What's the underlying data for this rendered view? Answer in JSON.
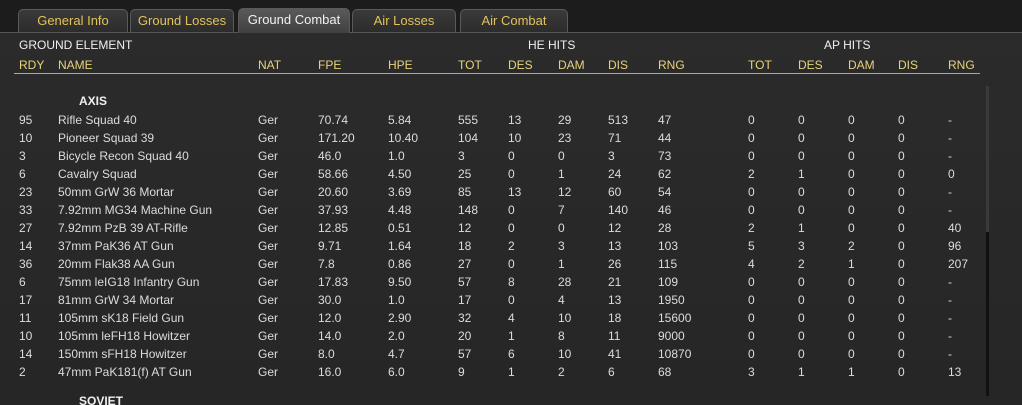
{
  "tabs": [
    "General Info",
    "Ground Losses",
    "Ground Combat",
    "Air Losses",
    "Air Combat"
  ],
  "active_tab": 2,
  "header": {
    "group": "GROUND ELEMENT",
    "he_hits": "HE HITS",
    "ap_hits": "AP HITS",
    "columns": [
      "RDY",
      "NAME",
      "NAT",
      "FPE",
      "HPE",
      "TOT",
      "DES",
      "DAM",
      "DIS",
      "RNG",
      "TOT",
      "DES",
      "DAM",
      "DIS",
      "RNG"
    ]
  },
  "sections": [
    {
      "name": "AXIS",
      "rows": [
        [
          "95",
          "Rifle Squad 40",
          "Ger",
          "70.74",
          "5.84",
          "555",
          "13",
          "29",
          "513",
          "47",
          "0",
          "0",
          "0",
          "0",
          "-"
        ],
        [
          "10",
          "Pioneer Squad 39",
          "Ger",
          "171.20",
          "10.40",
          "104",
          "10",
          "23",
          "71",
          "44",
          "0",
          "0",
          "0",
          "0",
          "-"
        ],
        [
          "3",
          "Bicycle Recon Squad 40",
          "Ger",
          "46.0",
          "1.0",
          "3",
          "0",
          "0",
          "3",
          "73",
          "0",
          "0",
          "0",
          "0",
          "-"
        ],
        [
          "6",
          "Cavalry Squad",
          "Ger",
          "58.66",
          "4.50",
          "25",
          "0",
          "1",
          "24",
          "62",
          "2",
          "1",
          "0",
          "0",
          "0"
        ],
        [
          "23",
          "50mm GrW 36 Mortar",
          "Ger",
          "20.60",
          "3.69",
          "85",
          "13",
          "12",
          "60",
          "54",
          "0",
          "0",
          "0",
          "0",
          "-"
        ],
        [
          "33",
          "7.92mm MG34 Machine Gun",
          "Ger",
          "37.93",
          "4.48",
          "148",
          "0",
          "7",
          "140",
          "46",
          "0",
          "0",
          "0",
          "0",
          "-"
        ],
        [
          "27",
          "7.92mm PzB 39 AT-Rifle",
          "Ger",
          "12.85",
          "0.51",
          "12",
          "0",
          "0",
          "12",
          "28",
          "2",
          "1",
          "0",
          "0",
          "40"
        ],
        [
          "14",
          "37mm PaK36 AT Gun",
          "Ger",
          "9.71",
          "1.64",
          "18",
          "2",
          "3",
          "13",
          "103",
          "5",
          "3",
          "2",
          "0",
          "96"
        ],
        [
          "36",
          "20mm Flak38 AA Gun",
          "Ger",
          "7.8",
          "0.86",
          "27",
          "0",
          "1",
          "26",
          "115",
          "4",
          "2",
          "1",
          "0",
          "207"
        ],
        [
          "6",
          "75mm leIG18 Infantry Gun",
          "Ger",
          "17.83",
          "9.50",
          "57",
          "8",
          "28",
          "21",
          "109",
          "0",
          "0",
          "0",
          "0",
          "-"
        ],
        [
          "17",
          "81mm GrW 34 Mortar",
          "Ger",
          "30.0",
          "1.0",
          "17",
          "0",
          "4",
          "13",
          "1950",
          "0",
          "0",
          "0",
          "0",
          "-"
        ],
        [
          "11",
          "105mm sK18 Field Gun",
          "Ger",
          "12.0",
          "2.90",
          "32",
          "4",
          "10",
          "18",
          "15600",
          "0",
          "0",
          "0",
          "0",
          "-"
        ],
        [
          "10",
          "105mm leFH18 Howitzer",
          "Ger",
          "14.0",
          "2.0",
          "20",
          "1",
          "8",
          "11",
          "9000",
          "0",
          "0",
          "0",
          "0",
          "-"
        ],
        [
          "14",
          "150mm sFH18 Howitzer",
          "Ger",
          "8.0",
          "4.7",
          "57",
          "6",
          "10",
          "41",
          "10870",
          "0",
          "0",
          "0",
          "0",
          "-"
        ],
        [
          "2",
          "47mm PaK181(f) AT Gun",
          "Ger",
          "16.0",
          "6.0",
          "9",
          "1",
          "2",
          "6",
          "68",
          "3",
          "1",
          "1",
          "0",
          "13"
        ]
      ]
    },
    {
      "name": "SOVIET",
      "rows": []
    }
  ]
}
